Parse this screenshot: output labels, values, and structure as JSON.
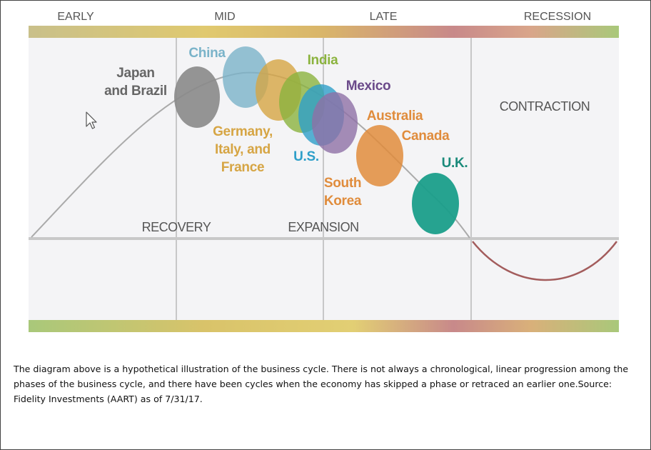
{
  "phases": [
    "EARLY",
    "MID",
    "LATE",
    "RECESSION"
  ],
  "regions": {
    "contraction": "CONTRACTION",
    "recovery": "RECOVERY",
    "expansion": "EXPANSION"
  },
  "countries": {
    "japan_brazil": [
      "Japan",
      "and Brazil"
    ],
    "china": "China",
    "germany_italy_france": [
      "Germany,",
      "Italy, and",
      "France"
    ],
    "india": "India",
    "us": "U.S.",
    "mexico": "Mexico",
    "australia": "Australia",
    "south_korea": [
      "South",
      "Korea"
    ],
    "canada": "Canada",
    "uk": "U.K."
  },
  "colors": {
    "japan_brazil": "#8a8a8a",
    "china": "#7ab3c9",
    "germany": "#d6a544",
    "india": "#8bb33e",
    "us": "#2e9fc9",
    "mexico": "#8e70a6",
    "australia": "#e08c3c",
    "uk": "#1a9e8a",
    "curve_expansion": "#aaaaaa",
    "curve_recession": "#a35c5c"
  },
  "caption": "The diagram above is a hypothetical illustration of the business cycle. There is not always a chronological, linear progression among the phases of the business cycle, and there have been cycles when the economy has skipped a phase or retraced an earlier one.Source: Fidelity Investments (AART) as of 7/31/17."
}
